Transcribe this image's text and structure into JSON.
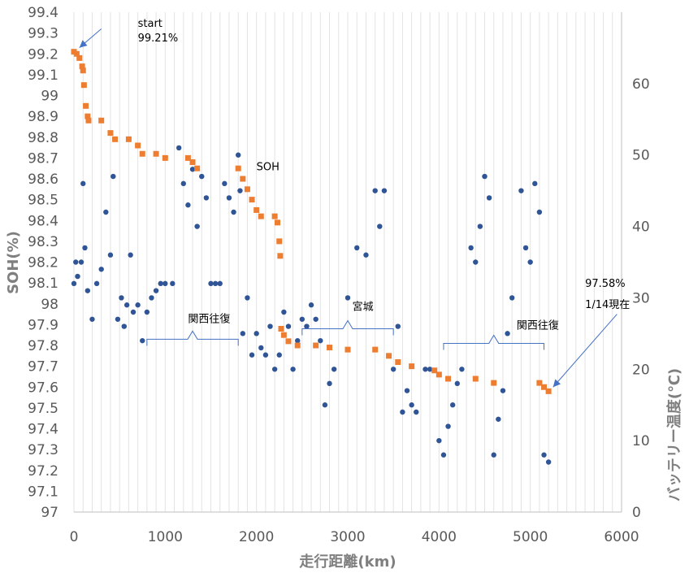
{
  "chart_data": {
    "type": "scatter",
    "xlabel": "走行距離(km)",
    "ylabel_left": "SOH(%)",
    "ylabel_right": "バッテリー温度(℃)",
    "xlim": [
      0,
      6000
    ],
    "ylim_left": [
      97,
      99.4
    ],
    "ylim_right": [
      0,
      70
    ],
    "x_ticks": [
      "0",
      "1000",
      "2000",
      "3000",
      "4000",
      "5000",
      "6000"
    ],
    "y_left_ticks": [
      "97",
      "97.1",
      "97.2",
      "97.3",
      "97.4",
      "97.5",
      "97.6",
      "97.7",
      "97.8",
      "97.9",
      "98",
      "98.1",
      "98.2",
      "98.3",
      "98.4",
      "98.5",
      "98.6",
      "98.7",
      "98.8",
      "98.9",
      "99",
      "99.1",
      "99.2",
      "99.3",
      "99.4"
    ],
    "y_right_ticks": [
      "0",
      "10",
      "20",
      "30",
      "40",
      "50",
      "60"
    ],
    "grid": "vertical",
    "series": [
      {
        "color": "#ed7d31",
        "axis": "left",
        "points": [
          [
            0,
            99.21
          ],
          [
            30,
            99.2
          ],
          [
            60,
            99.18
          ],
          [
            90,
            99.14
          ],
          [
            100,
            99.12
          ],
          [
            110,
            99.05
          ],
          [
            130,
            98.95
          ],
          [
            150,
            98.9
          ],
          [
            160,
            98.88
          ],
          [
            300,
            98.88
          ],
          [
            400,
            98.82
          ],
          [
            450,
            98.79
          ],
          [
            600,
            98.79
          ],
          [
            700,
            98.76
          ],
          [
            750,
            98.72
          ],
          [
            900,
            98.72
          ],
          [
            1000,
            98.7
          ],
          [
            1250,
            98.7
          ],
          [
            1300,
            98.68
          ],
          [
            1350,
            98.65
          ],
          [
            1800,
            98.65
          ],
          [
            1850,
            98.6
          ],
          [
            1900,
            98.55
          ],
          [
            1950,
            98.5
          ],
          [
            2000,
            98.45
          ],
          [
            2050,
            98.42
          ],
          [
            2200,
            98.42
          ],
          [
            2230,
            98.39
          ],
          [
            2250,
            98.3
          ],
          [
            2260,
            98.23
          ],
          [
            2270,
            97.88
          ],
          [
            2300,
            97.85
          ],
          [
            2350,
            97.82
          ],
          [
            2450,
            97.8
          ],
          [
            2650,
            97.8
          ],
          [
            2800,
            97.79
          ],
          [
            3000,
            97.78
          ],
          [
            3300,
            97.78
          ],
          [
            3450,
            97.75
          ],
          [
            3550,
            97.72
          ],
          [
            3700,
            97.7
          ],
          [
            3950,
            97.68
          ],
          [
            4000,
            97.66
          ],
          [
            4100,
            97.64
          ],
          [
            4400,
            97.64
          ],
          [
            4600,
            97.62
          ],
          [
            5100,
            97.62
          ],
          [
            5150,
            97.6
          ],
          [
            5200,
            97.58
          ]
        ]
      },
      {
        "color": "#2f5597",
        "axis": "right",
        "points": [
          [
            0,
            32
          ],
          [
            20,
            35
          ],
          [
            40,
            33
          ],
          [
            80,
            35
          ],
          [
            100,
            46
          ],
          [
            120,
            37
          ],
          [
            150,
            31
          ],
          [
            200,
            27
          ],
          [
            250,
            32
          ],
          [
            300,
            34
          ],
          [
            350,
            42
          ],
          [
            400,
            36
          ],
          [
            430,
            47
          ],
          [
            480,
            27
          ],
          [
            520,
            30
          ],
          [
            550,
            26
          ],
          [
            580,
            29
          ],
          [
            620,
            36
          ],
          [
            650,
            28
          ],
          [
            700,
            29
          ],
          [
            750,
            24
          ],
          [
            800,
            28
          ],
          [
            850,
            30
          ],
          [
            900,
            31
          ],
          [
            950,
            32
          ],
          [
            1000,
            32
          ],
          [
            1080,
            32
          ],
          [
            1150,
            51
          ],
          [
            1200,
            46
          ],
          [
            1250,
            43
          ],
          [
            1300,
            48
          ],
          [
            1350,
            40
          ],
          [
            1400,
            47
          ],
          [
            1450,
            44
          ],
          [
            1500,
            32
          ],
          [
            1550,
            32
          ],
          [
            1600,
            32
          ],
          [
            1650,
            46
          ],
          [
            1700,
            44
          ],
          [
            1750,
            42
          ],
          [
            1800,
            50
          ],
          [
            1820,
            45
          ],
          [
            1850,
            25
          ],
          [
            1900,
            30
          ],
          [
            1950,
            22
          ],
          [
            2000,
            25
          ],
          [
            2050,
            23
          ],
          [
            2100,
            22
          ],
          [
            2150,
            26
          ],
          [
            2200,
            20
          ],
          [
            2250,
            22
          ],
          [
            2300,
            28
          ],
          [
            2350,
            26
          ],
          [
            2400,
            20
          ],
          [
            2450,
            24
          ],
          [
            2500,
            27
          ],
          [
            2550,
            26
          ],
          [
            2600,
            29
          ],
          [
            2650,
            27
          ],
          [
            2700,
            24
          ],
          [
            2750,
            15
          ],
          [
            2800,
            18
          ],
          [
            2850,
            20
          ],
          [
            3000,
            30
          ],
          [
            3100,
            37
          ],
          [
            3200,
            36
          ],
          [
            3300,
            45
          ],
          [
            3350,
            40
          ],
          [
            3400,
            45
          ],
          [
            3500,
            20
          ],
          [
            3550,
            26
          ],
          [
            3600,
            14
          ],
          [
            3650,
            17
          ],
          [
            3700,
            15
          ],
          [
            3750,
            14
          ],
          [
            3850,
            20
          ],
          [
            3900,
            20
          ],
          [
            4000,
            10
          ],
          [
            4050,
            8
          ],
          [
            4100,
            12
          ],
          [
            4150,
            15
          ],
          [
            4200,
            18
          ],
          [
            4250,
            20
          ],
          [
            4350,
            37
          ],
          [
            4400,
            35
          ],
          [
            4450,
            40
          ],
          [
            4500,
            47
          ],
          [
            4550,
            44
          ],
          [
            4600,
            8
          ],
          [
            4650,
            13
          ],
          [
            4700,
            17
          ],
          [
            4750,
            25
          ],
          [
            4800,
            30
          ],
          [
            4900,
            45
          ],
          [
            4950,
            37
          ],
          [
            5000,
            35
          ],
          [
            5050,
            46
          ],
          [
            5100,
            42
          ],
          [
            5150,
            8
          ],
          [
            5200,
            7
          ]
        ]
      }
    ],
    "annotations": [
      {
        "text": "start",
        "x": 700,
        "y": 99.35
      },
      {
        "text": "99.21%",
        "x": 700,
        "y": 99.28
      },
      {
        "text": "SOH",
        "x": 2000,
        "y": 98.66
      },
      {
        "text": "97.58%",
        "x": 5600,
        "y": 98.1
      },
      {
        "text": "1/14現在",
        "x": 5600,
        "y": 98.0
      },
      {
        "text": "関西往復",
        "x": 1250,
        "y": 97.93
      },
      {
        "text": "宮城",
        "x": 3050,
        "y": 97.99
      },
      {
        "text": "関西往復",
        "x": 4850,
        "y": 97.9
      }
    ],
    "braces": [
      {
        "x_start": 800,
        "x_end": 1800,
        "y": 97.83
      },
      {
        "x_start": 2500,
        "x_end": 3500,
        "y": 97.88
      },
      {
        "x_start": 4050,
        "x_end": 5150,
        "y": 97.81
      }
    ],
    "arrows": [
      {
        "from": [
          300,
          99.32
        ],
        "to": [
          60,
          99.23
        ]
      },
      {
        "from": [
          5950,
          97.95
        ],
        "to": [
          5250,
          97.6
        ]
      }
    ]
  }
}
